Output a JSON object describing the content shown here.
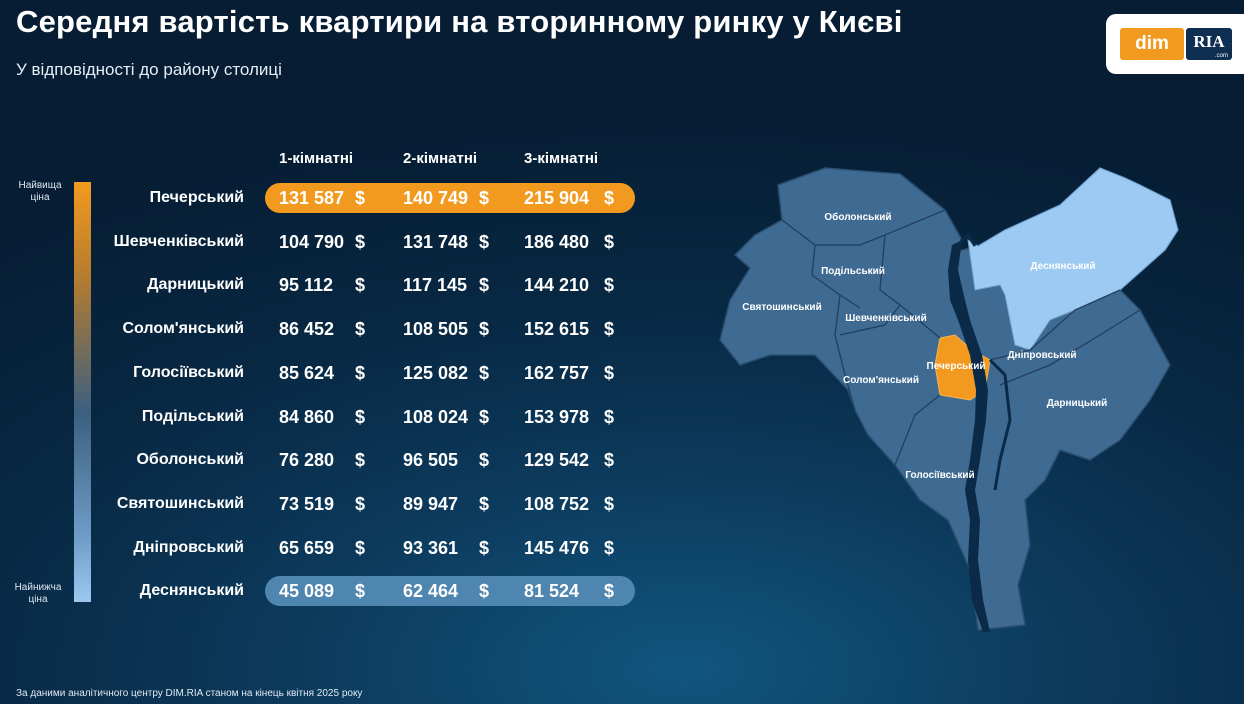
{
  "title": "Середня вартість квартири на вторинному ринку у Києві",
  "subtitle": "У відповідності до району столиці",
  "logo": {
    "left": "dim",
    "right": "RIA",
    "small": ".com"
  },
  "footer": "За даними аналітичного центру DIM.RIA станом на кінець квітня 2025 року",
  "scale": {
    "top_label": "Найвища ціна",
    "bottom_label": "Найнижча ціна"
  },
  "chart_data": {
    "type": "table",
    "columns": [
      "1-кімнатні",
      "2-кімнатні",
      "3-кімнатні"
    ],
    "currency": "$",
    "rows": [
      {
        "district": "Печерський",
        "values": [
          "131 587",
          "140 749",
          "215 904"
        ]
      },
      {
        "district": "Шевченківський",
        "values": [
          "104 790",
          "131 748",
          "186 480"
        ]
      },
      {
        "district": "Дарницький",
        "values": [
          "95 112",
          "117 145",
          "144 210"
        ]
      },
      {
        "district": "Солом'янський",
        "values": [
          "86 452",
          "108 505",
          "152 615"
        ]
      },
      {
        "district": "Голосіївський",
        "values": [
          "85 624",
          "125 082",
          "162 757"
        ]
      },
      {
        "district": "Подільський",
        "values": [
          "84 860",
          "108 024",
          "153 978"
        ]
      },
      {
        "district": "Оболонський",
        "values": [
          "76 280",
          "96 505",
          "129 542"
        ]
      },
      {
        "district": "Святошинський",
        "values": [
          "73 519",
          "89 947",
          "108 752"
        ]
      },
      {
        "district": "Дніпровський",
        "values": [
          "65 659",
          "93 361",
          "145 476"
        ]
      },
      {
        "district": "Деснянський",
        "values": [
          "45 089",
          "62 464",
          "81 524"
        ]
      }
    ],
    "highest": "Печерський",
    "lowest": "Деснянський"
  },
  "map": {
    "labels": {
      "obolonskyi": "Оболонський",
      "podilskyi": "Подільський",
      "sviatoshynskyi": "Святошинський",
      "shevchenkivskyi": "Шевченківський",
      "solomianskyi": "Солом'янський",
      "pecherskyi": "Печерський",
      "dniprovskyi": "Дніпровський",
      "darnytskyi": "Дарницький",
      "holosiivskyi": "Голосіївський",
      "desnianskyi": "Деснянський"
    }
  },
  "colors": {
    "highlight_high": "#f29a1f",
    "highlight_low": "#4e86b0",
    "district_fill": "#3f6a92",
    "desna_fill": "#9ccaf2",
    "river": "#0a2a47"
  }
}
